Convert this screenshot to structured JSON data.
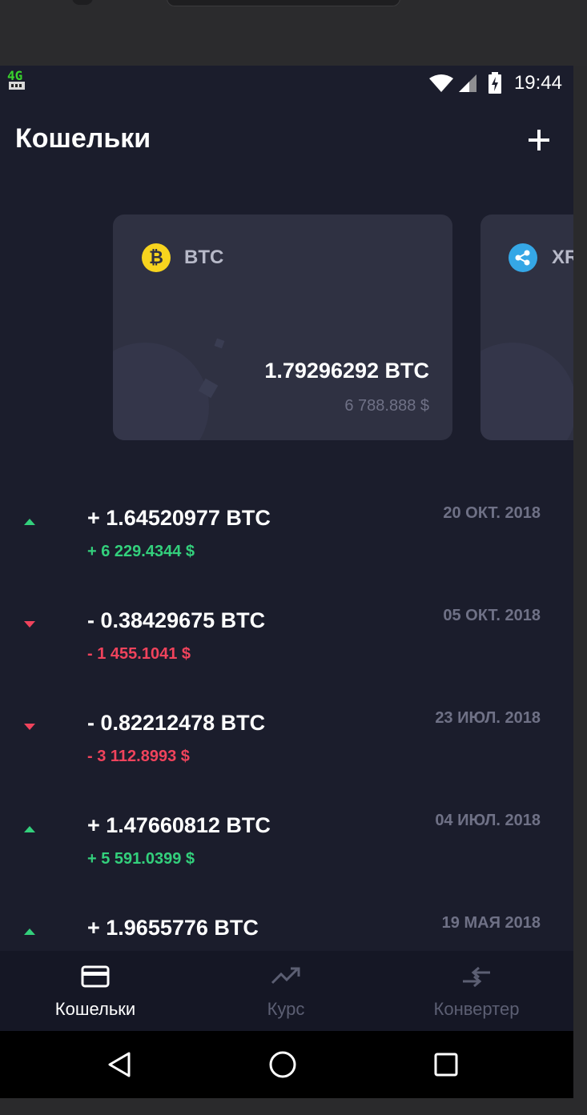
{
  "status_bar": {
    "time": "19:44",
    "network_label": "4G"
  },
  "header": {
    "title": "Кошельки",
    "add_icon": "plus-icon"
  },
  "cards": [
    {
      "coin": "BTC",
      "icon": "bitcoin-icon",
      "icon_glyph": "₿",
      "icon_color": "#f7d41e",
      "amount": "1.79296292 BTC",
      "fiat": "6 788.888 $"
    },
    {
      "coin": "XR",
      "icon": "ripple-icon",
      "icon_color": "#35a7e6"
    }
  ],
  "transactions": [
    {
      "direction": "up",
      "amount": "+ 1.64520977 BTC",
      "fiat": "+ 6 229.4344 $",
      "date": "20 ОКТ. 2018"
    },
    {
      "direction": "down",
      "amount": "- 0.38429675 BTC",
      "fiat": "- 1 455.1041 $",
      "date": "05 ОКТ. 2018"
    },
    {
      "direction": "down",
      "amount": "- 0.82212478 BTC",
      "fiat": "- 3 112.8993 $",
      "date": "23 ИЮЛ. 2018"
    },
    {
      "direction": "up",
      "amount": "+ 1.47660812 BTC",
      "fiat": "+ 5 591.0399 $",
      "date": "04 ИЮЛ. 2018"
    },
    {
      "direction": "up",
      "amount": "+ 1.9655776 BTC",
      "fiat": "",
      "date": "19 МАЯ 2018"
    }
  ],
  "bottom_nav": [
    {
      "label": "Кошельки",
      "icon": "wallet-card-icon",
      "active": true
    },
    {
      "label": "Курс",
      "icon": "trending-up-icon",
      "active": false
    },
    {
      "label": "Конвертер",
      "icon": "convert-arrows-icon",
      "active": false
    }
  ],
  "colors": {
    "background": "#1b1d2c",
    "card": "#2f3142",
    "positive": "#33d07c",
    "negative": "#f0435c",
    "muted": "#6f7186"
  }
}
